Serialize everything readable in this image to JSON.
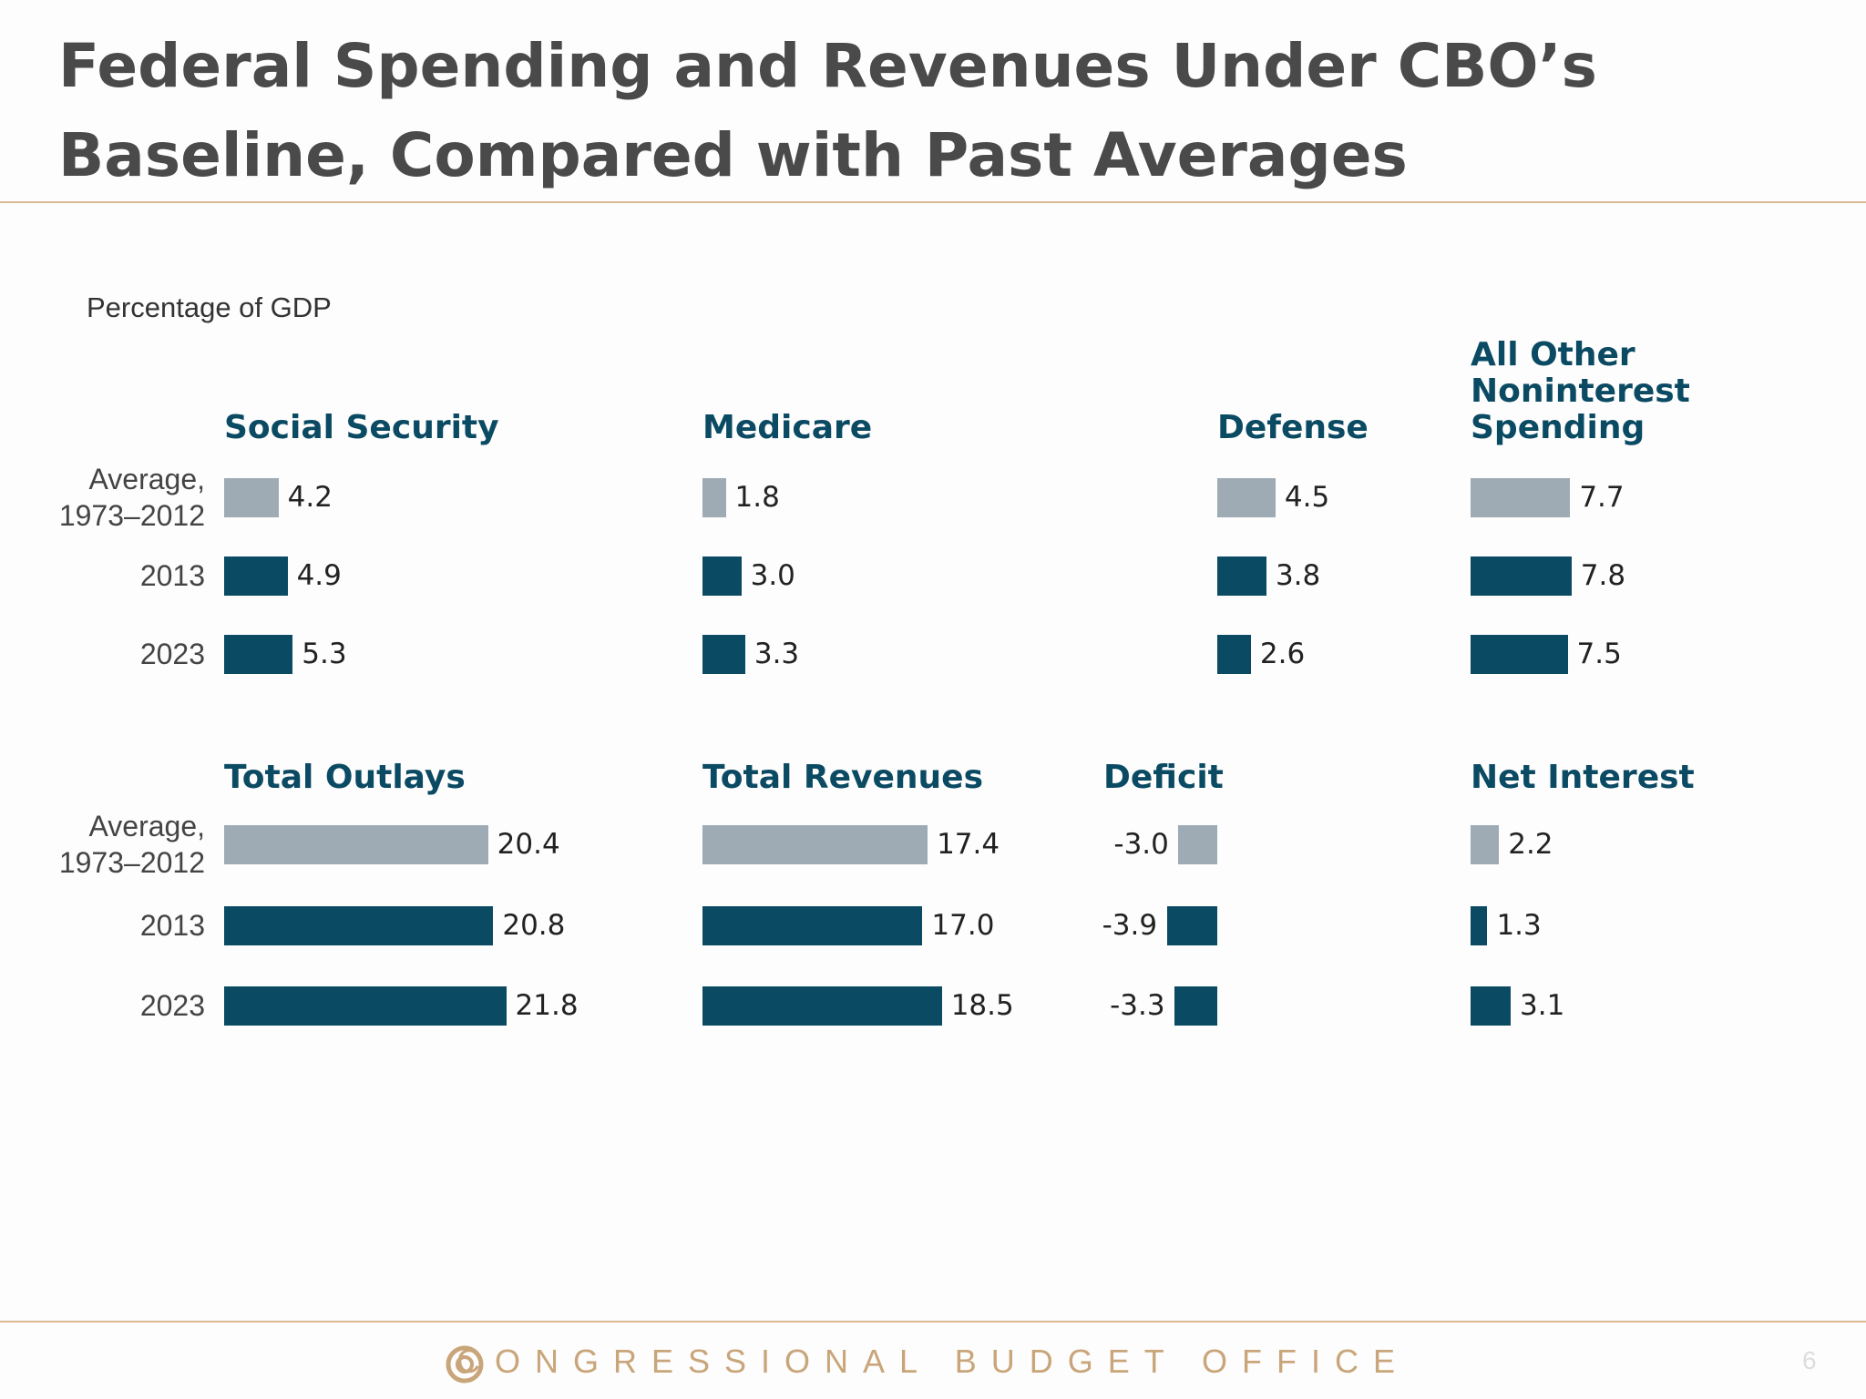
{
  "title": "Federal Spending and Revenues Under CBO’s Baseline, Compared with Past Averages",
  "subtitle": "Percentage of GDP",
  "footer": "CONGRESSIONAL BUDGET OFFICE",
  "page_number": "6",
  "chart_data": [
    {
      "type": "bar",
      "title": "Social Security",
      "categories": [
        "Average, 1973–2012",
        "2013",
        "2023"
      ],
      "values": [
        4.2,
        4.9,
        5.3
      ],
      "colors": [
        "#9eaab4",
        "#0b4a63",
        "#0b4a63"
      ]
    },
    {
      "type": "bar",
      "title": "Medicare",
      "values": [
        1.8,
        3.0,
        3.3
      ],
      "value_labels": [
        "1.8",
        "3.0",
        "3.3"
      ],
      "colors": [
        "#9eaab4",
        "#0b4a63",
        "#0b4a63"
      ]
    },
    {
      "type": "bar",
      "title": "Defense",
      "values": [
        4.5,
        3.8,
        2.6
      ],
      "colors": [
        "#9eaab4",
        "#0b4a63",
        "#0b4a63"
      ]
    },
    {
      "type": "bar",
      "title": "All Other Noninterest Spending",
      "values": [
        7.7,
        7.8,
        7.5
      ],
      "colors": [
        "#9eaab4",
        "#0b4a63",
        "#0b4a63"
      ]
    },
    {
      "type": "bar",
      "title": "Total Outlays",
      "categories": [
        "Average, 1973–2012",
        "2013",
        "2023"
      ],
      "values": [
        20.4,
        20.8,
        21.8
      ],
      "colors": [
        "#9eaab4",
        "#0b4a63",
        "#0b4a63"
      ]
    },
    {
      "type": "bar",
      "title": "Total Revenues",
      "values": [
        17.4,
        17.0,
        18.5
      ],
      "value_labels": [
        "17.4",
        "17.0",
        "18.5"
      ],
      "colors": [
        "#9eaab4",
        "#0b4a63",
        "#0b4a63"
      ]
    },
    {
      "type": "bar",
      "title": "Deficit",
      "values": [
        -3.0,
        -3.9,
        -3.3
      ],
      "value_labels": [
        "-3.0",
        "-3.9",
        "-3.3"
      ],
      "colors": [
        "#9eaab4",
        "#0b4a63",
        "#0b4a63"
      ]
    },
    {
      "type": "bar",
      "title": "Net Interest",
      "values": [
        2.2,
        1.3,
        3.1
      ],
      "colors": [
        "#9eaab4",
        "#0b4a63",
        "#0b4a63"
      ]
    }
  ]
}
